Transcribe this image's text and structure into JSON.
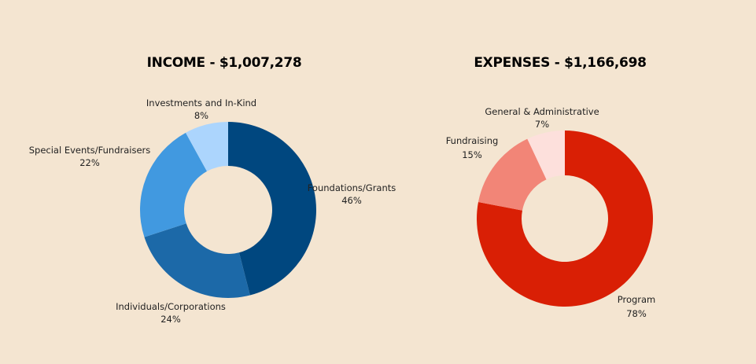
{
  "chart_data": [
    {
      "type": "pie",
      "donut": true,
      "title": "INCOME - $1,007,278",
      "slices": [
        {
          "label": "Foundations/Grants",
          "value": 46,
          "display": "46%",
          "color": "#00477f"
        },
        {
          "label": "Individuals/Corporations",
          "value": 24,
          "display": "24%",
          "color": "#1c69a8"
        },
        {
          "label": "Special Events/Fundraisers",
          "value": 22,
          "display": "22%",
          "color": "#4199e0"
        },
        {
          "label": "Investments and In-Kind",
          "value": 8,
          "display": "8%",
          "color": "#acd5fd"
        }
      ]
    },
    {
      "type": "pie",
      "donut": true,
      "title": "EXPENSES - $1,166,698",
      "slices": [
        {
          "label": "Program",
          "value": 78,
          "display": "78%",
          "color": "#d91f05"
        },
        {
          "label": "Fundraising",
          "value": 15,
          "display": "15%",
          "color": "#f28577"
        },
        {
          "label": "General & Administrative",
          "value": 7,
          "display": "7%",
          "color": "#fde0dc"
        }
      ]
    }
  ],
  "background": "#f4e5d1"
}
